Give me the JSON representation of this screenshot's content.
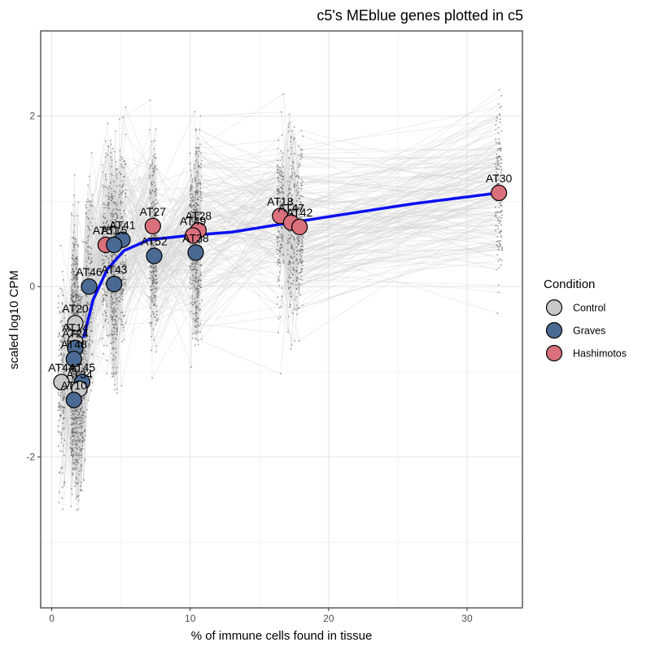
{
  "chart_data": {
    "type": "scatter",
    "title": "c5's MEblue genes plotted in c5",
    "xlabel": "% of immune cells found in tissue",
    "ylabel": "scaled log10 CPM",
    "xlim": [
      -0.8,
      34
    ],
    "ylim": [
      -3.77,
      3.0
    ],
    "x_ticks": [
      0,
      10,
      20,
      30
    ],
    "y_ticks": [
      -2,
      0,
      2
    ],
    "x_tick_labels": [
      "0",
      "10",
      "20",
      "30"
    ],
    "y_tick_labels": [
      "-2",
      "0",
      "2"
    ],
    "grid": true,
    "legend": {
      "title": "Condition",
      "placement": "right",
      "items": [
        {
          "label": "Control",
          "color": "#c8c8c8"
        },
        {
          "label": "Graves",
          "color": "#4a6a93"
        },
        {
          "label": "Hashimotos",
          "color": "#d9707c"
        }
      ]
    },
    "trend_color": "#0a10f0",
    "trend": [
      {
        "x": 2.3,
        "y": -0.6
      },
      {
        "x": 3.0,
        "y": -0.15
      },
      {
        "x": 4.0,
        "y": 0.2
      },
      {
        "x": 5.2,
        "y": 0.42
      },
      {
        "x": 7.0,
        "y": 0.55
      },
      {
        "x": 10.0,
        "y": 0.6
      },
      {
        "x": 13.0,
        "y": 0.64
      },
      {
        "x": 16.5,
        "y": 0.73
      },
      {
        "x": 20.0,
        "y": 0.82
      },
      {
        "x": 26.0,
        "y": 0.97
      },
      {
        "x": 32.3,
        "y": 1.1
      }
    ],
    "samples": [
      {
        "label": "AT30",
        "x": 32.3,
        "y": 1.1,
        "condition": "Hashimotos"
      },
      {
        "label": "AT18",
        "x": 16.5,
        "y": 0.83,
        "condition": "Hashimotos"
      },
      {
        "label": "AT47",
        "x": 17.3,
        "y": 0.75,
        "condition": "Hashimotos"
      },
      {
        "label": "AT42",
        "x": 17.9,
        "y": 0.7,
        "condition": "Hashimotos"
      },
      {
        "label": "AT27",
        "x": 7.3,
        "y": 0.71,
        "condition": "Hashimotos"
      },
      {
        "label": "AT28",
        "x": 10.6,
        "y": 0.66,
        "condition": "Hashimotos"
      },
      {
        "label": "AT49",
        "x": 10.2,
        "y": 0.6,
        "condition": "Hashimotos"
      },
      {
        "label": "AT52",
        "x": 7.4,
        "y": 0.36,
        "condition": "Graves"
      },
      {
        "label": "AT38",
        "x": 10.4,
        "y": 0.4,
        "condition": "Graves"
      },
      {
        "label": "AT41",
        "x": 5.1,
        "y": 0.55,
        "condition": "Graves"
      },
      {
        "label": "AT51",
        "x": 3.9,
        "y": 0.49,
        "condition": "Hashimotos"
      },
      {
        "label": "AT15",
        "x": 4.5,
        "y": 0.49,
        "condition": "Graves"
      },
      {
        "label": "AT43",
        "x": 4.5,
        "y": 0.03,
        "condition": "Graves"
      },
      {
        "label": "AT46",
        "x": 2.7,
        "y": 0.0,
        "condition": "Graves"
      },
      {
        "label": "AT20",
        "x": 1.7,
        "y": -0.43,
        "condition": "Control"
      },
      {
        "label": "AT14",
        "x": 1.7,
        "y": -0.65,
        "condition": "Control"
      },
      {
        "label": "AT24",
        "x": 1.7,
        "y": -0.72,
        "condition": "Graves"
      },
      {
        "label": "AT48",
        "x": 1.6,
        "y": -0.85,
        "condition": "Graves"
      },
      {
        "label": "AT45",
        "x": 2.2,
        "y": -1.12,
        "condition": "Graves"
      },
      {
        "label": "AT44",
        "x": 0.7,
        "y": -1.12,
        "condition": "Control"
      },
      {
        "label": "AT34",
        "x": 2.0,
        "y": -1.2,
        "condition": "Control"
      },
      {
        "label": "AT10",
        "x": 1.6,
        "y": -1.33,
        "condition": "Graves"
      }
    ],
    "background_lines_color": "#d3d3d3",
    "background_points_color": "#555555"
  }
}
